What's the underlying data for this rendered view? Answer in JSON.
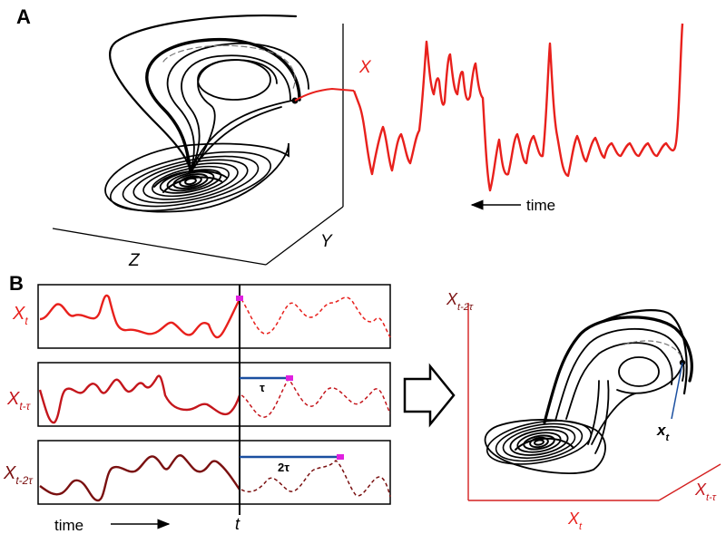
{
  "panels": {
    "a": {
      "label": "A"
    },
    "b": {
      "label": "B"
    }
  },
  "panel_a": {
    "axis_x": "X",
    "axis_y": "Y",
    "axis_z": "Z",
    "time_label": "time"
  },
  "panel_b": {
    "rows": [
      {
        "base": "X",
        "sub": "t"
      },
      {
        "base": "X",
        "sub": "t-τ"
      },
      {
        "base": "X",
        "sub": "t-2τ"
      }
    ],
    "lag_1": "τ",
    "lag_2": "2τ",
    "time_label": "time",
    "t_label": "t"
  },
  "embedding": {
    "axis_x": {
      "base": "X",
      "sub": "t"
    },
    "axis_y": {
      "base": "X",
      "sub": "t-τ"
    },
    "axis_z": {
      "base": "X",
      "sub": "t-2τ"
    },
    "point": {
      "base": "x",
      "sub": "t"
    }
  },
  "colors": {
    "red": "#e8201c",
    "red_mid": "#c4161c",
    "red_dark": "#7a1010",
    "axis_red": "#d42020",
    "lag_blue": "#1a4fa0",
    "marker_magenta": "#e020e0"
  }
}
